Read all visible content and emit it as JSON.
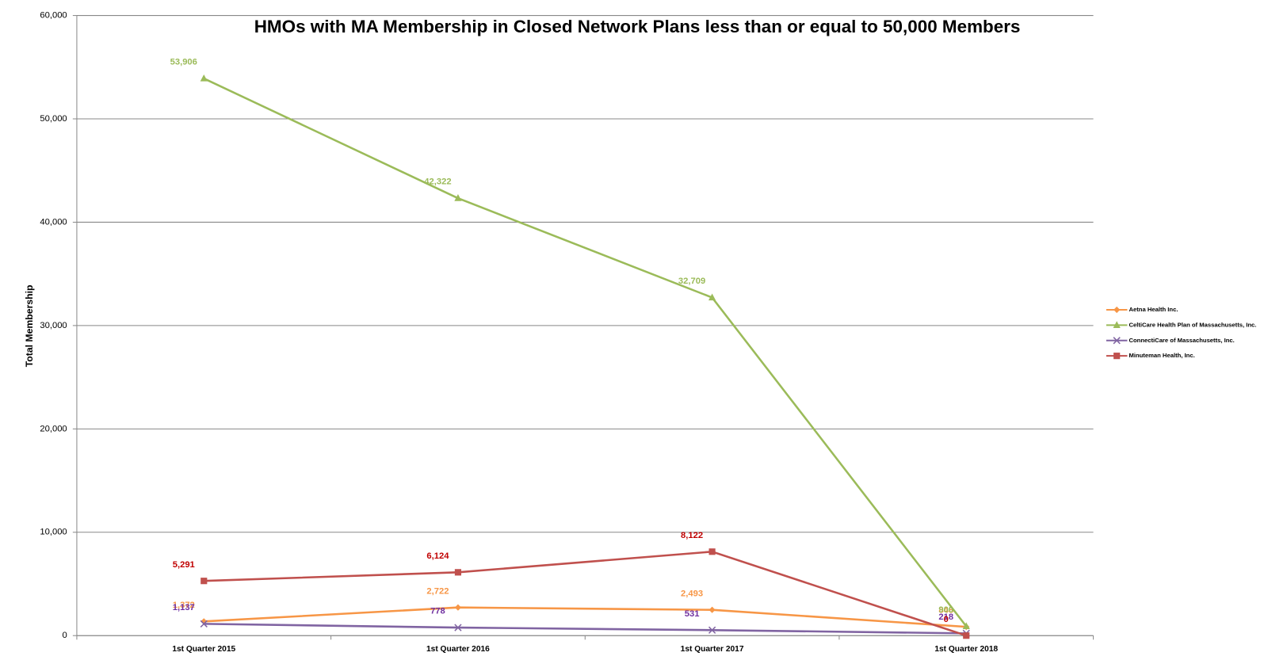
{
  "chart_data": {
    "type": "line",
    "title": "HMOs with MA Membership in Closed Network Plans less than or equal to 50,000 Members",
    "y_label": "Total Membership",
    "categories": [
      "1st Quarter 2015",
      "1st Quarter 2016",
      "1st Quarter 2017",
      "1st Quarter 2018"
    ],
    "series": [
      {
        "name": "Aetna Health Inc.",
        "color": "#f79646",
        "marker": "diamond",
        "values": [
          1372,
          2722,
          2493,
          848
        ],
        "value_labels": [
          "1,372",
          "2,722",
          "2,493",
          "848"
        ]
      },
      {
        "name": "CeltiCare Health Plan of Massachusetts, Inc.",
        "color": "#9bbb59",
        "marker": "triangle",
        "values": [
          53906,
          42322,
          32709,
          900
        ],
        "value_labels": [
          "53,906",
          "42,322",
          "32,709",
          "900"
        ]
      },
      {
        "name": "ConnectiCare of Massachusetts, Inc.",
        "color": "#8064a2",
        "marker": "x",
        "values": [
          1137,
          778,
          531,
          218
        ],
        "value_labels": [
          "1,137",
          "778",
          "531",
          "218"
        ]
      },
      {
        "name": "Minuteman Health, Inc.",
        "color": "#c0504d",
        "marker": "square",
        "values": [
          5291,
          6124,
          8122,
          0
        ],
        "value_labels": [
          "5,291",
          "6,124",
          "8,122",
          "0"
        ]
      }
    ],
    "ylim": [
      0,
      60000
    ],
    "yticks": [
      0,
      {
        "value": 10000,
        "label": "10,000"
      },
      {
        "value": 20000,
        "label": "20,000"
      },
      {
        "value": 30000,
        "label": "30,000"
      },
      {
        "value": 40000,
        "label": "40,000"
      },
      {
        "value": 50000,
        "label": "50,000"
      },
      {
        "value": 60000,
        "label": "60,000"
      }
    ],
    "grid": true,
    "legend": "right"
  }
}
